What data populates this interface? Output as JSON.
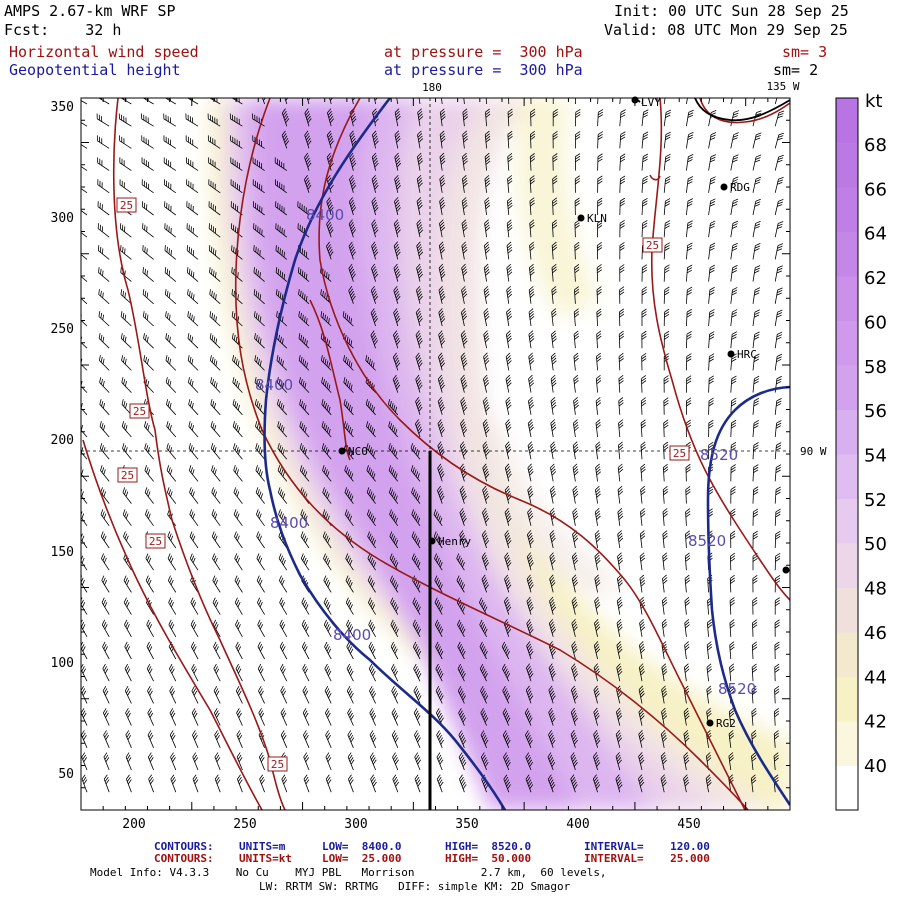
{
  "header": {
    "model": "AMPS 2.67-km WRF SP",
    "forecast": "Fcst:    32 h",
    "init": "Init: 00 UTC Sun 28 Sep 25",
    "valid": "Valid: 08 UTC Mon 29 Sep 25",
    "field1_name": "Horizontal wind speed",
    "field1_level": "at pressure =  300 hPa",
    "field1_sm": "sm= 3",
    "field2_name": "Geopotential height",
    "field2_level": "at pressure =  300 hPa",
    "field2_sm": "sm= 2"
  },
  "map": {
    "meridian_top_label": "180",
    "meridian_right_top_label": "135 W",
    "parallel_label": "90 W",
    "x_ticks": [
      "200",
      "250",
      "300",
      "350",
      "400",
      "450"
    ],
    "y_ticks": [
      "350",
      "300",
      "250",
      "200",
      "150",
      "100",
      "50"
    ],
    "stations": [
      "LVY",
      "RDG",
      "KLN",
      "HRC",
      "NCO",
      "Henry",
      "RG2"
    ],
    "height_labels": [
      "8400",
      "8400",
      "8400",
      "8400",
      "8520",
      "8520",
      "8520"
    ],
    "wind_labels": [
      "25",
      "25",
      "25",
      "25",
      "25",
      "25",
      "25"
    ]
  },
  "colorbar": {
    "unit": "kt",
    "levels": [
      "68",
      "66",
      "64",
      "62",
      "60",
      "58",
      "56",
      "54",
      "52",
      "50",
      "48",
      "46",
      "44",
      "42",
      "40"
    ]
  },
  "footer": {
    "c1_label": "CONTOURS:",
    "c1_units": "UNITS=m",
    "c1_low": "LOW=  8400.0",
    "c1_high": "HIGH=  8520.0",
    "c1_interval": "INTERVAL=    120.00",
    "c2_label": "CONTOURS:",
    "c2_units": "UNITS=kt",
    "c2_low": "LOW=  25.000",
    "c2_high": "HIGH=  50.000",
    "c2_interval": "INTERVAL=    25.000",
    "model_info": "Model Info: V4.3.3    No Cu    MYJ PBL   Morrison          2.7 km,  60 levels,",
    "model_info2": "LW: RRTM SW: RRTMG   DIFF: simple KM: 2D Smagor"
  },
  "colors": {
    "height_contour": "#1c2a8c",
    "wind_contour": "#9a1818",
    "label_red": "#a01010",
    "label_blue": "#1a1aa0"
  }
}
